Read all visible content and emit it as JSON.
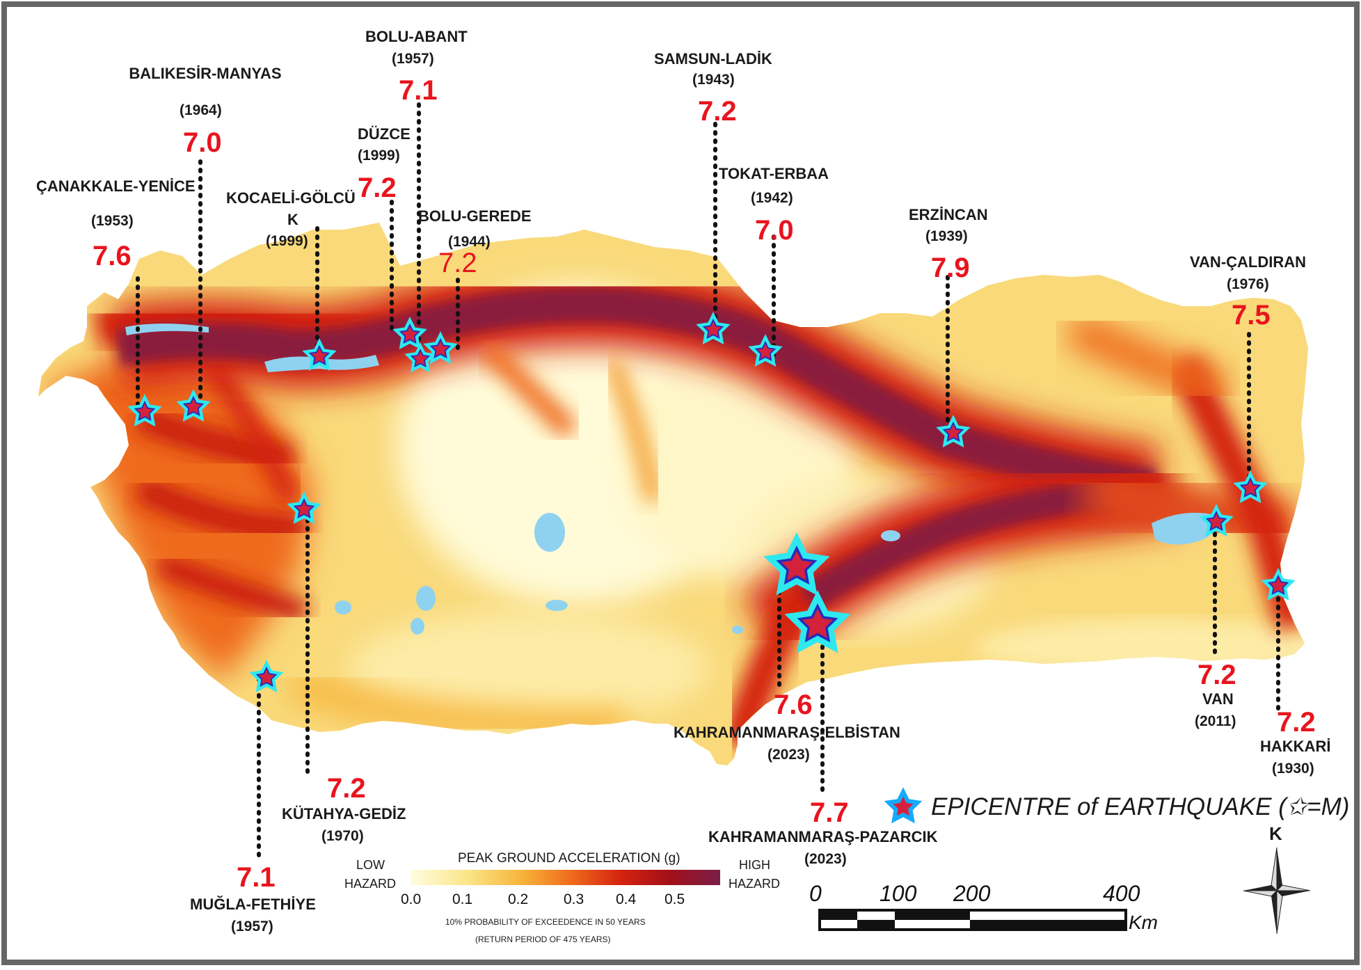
{
  "map": {
    "legend": {
      "title": "PEAK GROUND ACCELERATION (g)",
      "low_label": [
        "LOW",
        "HAZARD"
      ],
      "high_label": [
        "HIGH",
        "HAZARD"
      ],
      "ticks": [
        "0.0",
        "0.1",
        "0.2",
        "0.3",
        "0.4",
        "0.5"
      ],
      "note_1": "10% PROBABILITY OF EXCEEDENCE IN 50 YEARS",
      "note_2": "(RETURN PERIOD OF 475 YEARS)",
      "epicentre_label": "EPICENTRE of EARTHQUAKE (✩=M)",
      "colors": [
        "#fffde0",
        "#fbe68a",
        "#f7b43a",
        "#ef6a1c",
        "#d4230f",
        "#a11019",
        "#7a1f4a"
      ]
    },
    "scale": {
      "ticks": [
        "0",
        "100",
        "200",
        "400"
      ],
      "unit": "Km"
    },
    "north": {
      "label": "K"
    },
    "earthquakes": [
      {
        "name": "ÇANAKKALE-YENİCE",
        "year": "(1953)",
        "mag": "7.6"
      },
      {
        "name": "BALIKESİR-MANYAS",
        "year": "(1964)",
        "mag": "7.0"
      },
      {
        "name": "KOCAELİ-GÖLCÜ",
        "name2": "K",
        "year": "(1999)",
        "mag": ""
      },
      {
        "name": "DÜZCE",
        "year": "(1999)",
        "mag": "7.2"
      },
      {
        "name": "BOLU-ABANT",
        "year": "(1957)",
        "mag": "7.1"
      },
      {
        "name": "BOLU-GEREDE",
        "year": "(1944)",
        "mag": "7.2"
      },
      {
        "name": "SAMSUN-LADİK",
        "year": "(1943)",
        "mag": "7.2"
      },
      {
        "name": "TOKAT-ERBAA",
        "year": "(1942)",
        "mag": "7.0"
      },
      {
        "name": "ERZİNCAN",
        "year": "(1939)",
        "mag": "7.9"
      },
      {
        "name": "VAN-ÇALDIRAN",
        "year": "(1976)",
        "mag": "7.5"
      },
      {
        "name": "VAN",
        "year": "(2011)",
        "mag": "7.2"
      },
      {
        "name": "HAKKARİ",
        "year": "(1930)",
        "mag": "7.2"
      },
      {
        "name": "KAHRAMANMARAŞ-ELBİSTAN",
        "year": "(2023)",
        "mag": "7.6"
      },
      {
        "name": "KAHRAMANMARAŞ-PAZARCIK",
        "year": "(2023)",
        "mag": "7.7"
      },
      {
        "name": "KÜTAHYA-GEDİZ",
        "year": "(1970)",
        "mag": "7.2"
      },
      {
        "name": "MUĞLA-FETHİYE",
        "year": "(1957)",
        "mag": "7.1"
      }
    ]
  }
}
